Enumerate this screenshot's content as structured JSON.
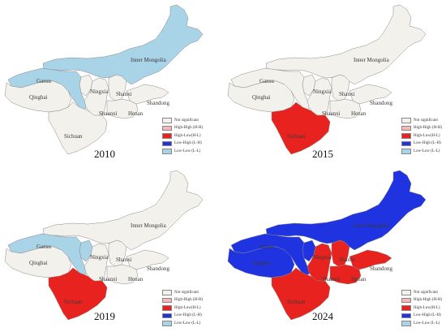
{
  "colors": {
    "not_significant": "#f2f1ec",
    "high_high": "#f4b8b8",
    "high_low": "#e8231f",
    "low_high": "#1f33e0",
    "low_low": "#a9d3e6"
  },
  "legend": {
    "items": [
      {
        "label": "Not significant",
        "color": "#f2f1ec"
      },
      {
        "label": "High-High (H-H)",
        "color": "#f4b8b8"
      },
      {
        "label": "High-Low(H-L)",
        "color": "#e8231f"
      },
      {
        "label": "Low-High (L-H)",
        "color": "#1f33e0"
      },
      {
        "label": "Low-Low (L-L)",
        "color": "#a9d3e6"
      }
    ]
  },
  "provinces": {
    "inner_mongolia": "Inner Mongolia",
    "gansu": "Gansu",
    "qinghai": "Qinghai",
    "ningxia": "Ningxia",
    "shanxi": "Shanxi",
    "shaanxi": "Shaanxi",
    "shandong": "Shandong",
    "henan": "Henan",
    "sichuan": "Sichuan"
  },
  "panels": [
    {
      "year": "2010",
      "classes": {
        "inner_mongolia": "low_low",
        "gansu": "low_low",
        "qinghai": "not_significant",
        "ningxia": "not_significant",
        "shanxi": "not_significant",
        "shaanxi": "not_significant",
        "shandong": "not_significant",
        "henan": "not_significant",
        "sichuan": "not_significant"
      }
    },
    {
      "year": "2015",
      "classes": {
        "inner_mongolia": "not_significant",
        "gansu": "not_significant",
        "qinghai": "not_significant",
        "ningxia": "not_significant",
        "shanxi": "not_significant",
        "shaanxi": "not_significant",
        "shandong": "not_significant",
        "henan": "not_significant",
        "sichuan": "high_low"
      }
    },
    {
      "year": "2019",
      "classes": {
        "inner_mongolia": "not_significant",
        "gansu": "low_low",
        "qinghai": "not_significant",
        "ningxia": "low_low",
        "shanxi": "not_significant",
        "shaanxi": "not_significant",
        "shandong": "not_significant",
        "henan": "not_significant",
        "sichuan": "high_low"
      }
    },
    {
      "year": "2024",
      "classes": {
        "inner_mongolia": "low_high",
        "gansu": "low_high",
        "qinghai": "low_high",
        "ningxia": "low_high",
        "shanxi": "high_low",
        "shaanxi": "high_low",
        "shandong": "high_low",
        "henan": "high_low",
        "sichuan": "high_low"
      }
    }
  ]
}
